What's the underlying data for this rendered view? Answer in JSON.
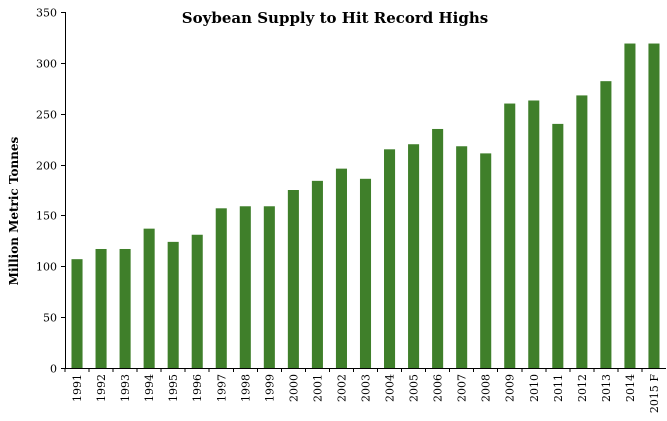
{
  "chart_data": {
    "type": "bar",
    "title": "Soybean Supply to Hit Record Highs",
    "xlabel": "",
    "ylabel": "Million Metric Tonnes",
    "ylim": [
      0,
      350
    ],
    "yticks": [
      0,
      50,
      100,
      150,
      200,
      250,
      300,
      350
    ],
    "grid": false,
    "legend": "none",
    "bar_color": "#3F7F2A",
    "categories": [
      "1991",
      "1992",
      "1993",
      "1994",
      "1995",
      "1996",
      "1997",
      "1998",
      "1999",
      "2000",
      "2001",
      "2002",
      "2003",
      "2004",
      "2005",
      "2006",
      "2007",
      "2008",
      "2009",
      "2010",
      "2011",
      "2012",
      "2013",
      "2014",
      "2015 F"
    ],
    "values": [
      107,
      117,
      117,
      137,
      124,
      131,
      157,
      159,
      159,
      175,
      184,
      196,
      186,
      215,
      220,
      235,
      218,
      211,
      260,
      263,
      240,
      268,
      282,
      319,
      319
    ]
  }
}
